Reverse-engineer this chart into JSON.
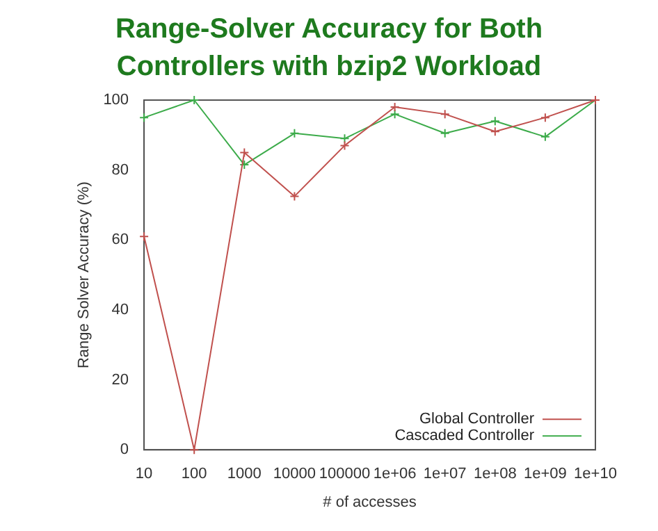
{
  "chart_data": {
    "type": "line",
    "title": "Range-Solver Accuracy for Both Controllers with bzip2 Workload",
    "xlabel": "# of accesses",
    "ylabel": "Range Solver Accuracy (%)",
    "x": [
      10,
      100,
      1000,
      10000,
      100000,
      1000000,
      10000000,
      100000000,
      1000000000,
      10000000000
    ],
    "series": [
      {
        "name": "Global Controller",
        "color": "#c0504d",
        "values": [
          61,
          0,
          85,
          72.5,
          87,
          98,
          96,
          91,
          95,
          100
        ]
      },
      {
        "name": "Cascaded Controller",
        "color": "#3cab4a",
        "values": [
          95,
          100,
          81.5,
          90.5,
          89,
          96,
          90.5,
          94,
          89.5,
          100
        ]
      }
    ],
    "log": "x",
    "xlim": [
      10,
      10000000000
    ],
    "xticks": [
      10,
      100,
      1000,
      10000,
      100000,
      {
        "value": 1000000,
        "label": "1e+06"
      },
      {
        "value": 10000000,
        "label": "1e+07"
      },
      {
        "value": 100000000,
        "label": "1e+08"
      },
      {
        "value": 1000000000,
        "label": "1e+09"
      },
      {
        "value": 10000000000,
        "label": "1e+10"
      }
    ],
    "ylim": [
      0,
      100
    ],
    "yticks": [
      0,
      20,
      40,
      60,
      80,
      100
    ],
    "grid": false,
    "legend": "bottom right",
    "marker": "cross",
    "line_style": "solid"
  }
}
